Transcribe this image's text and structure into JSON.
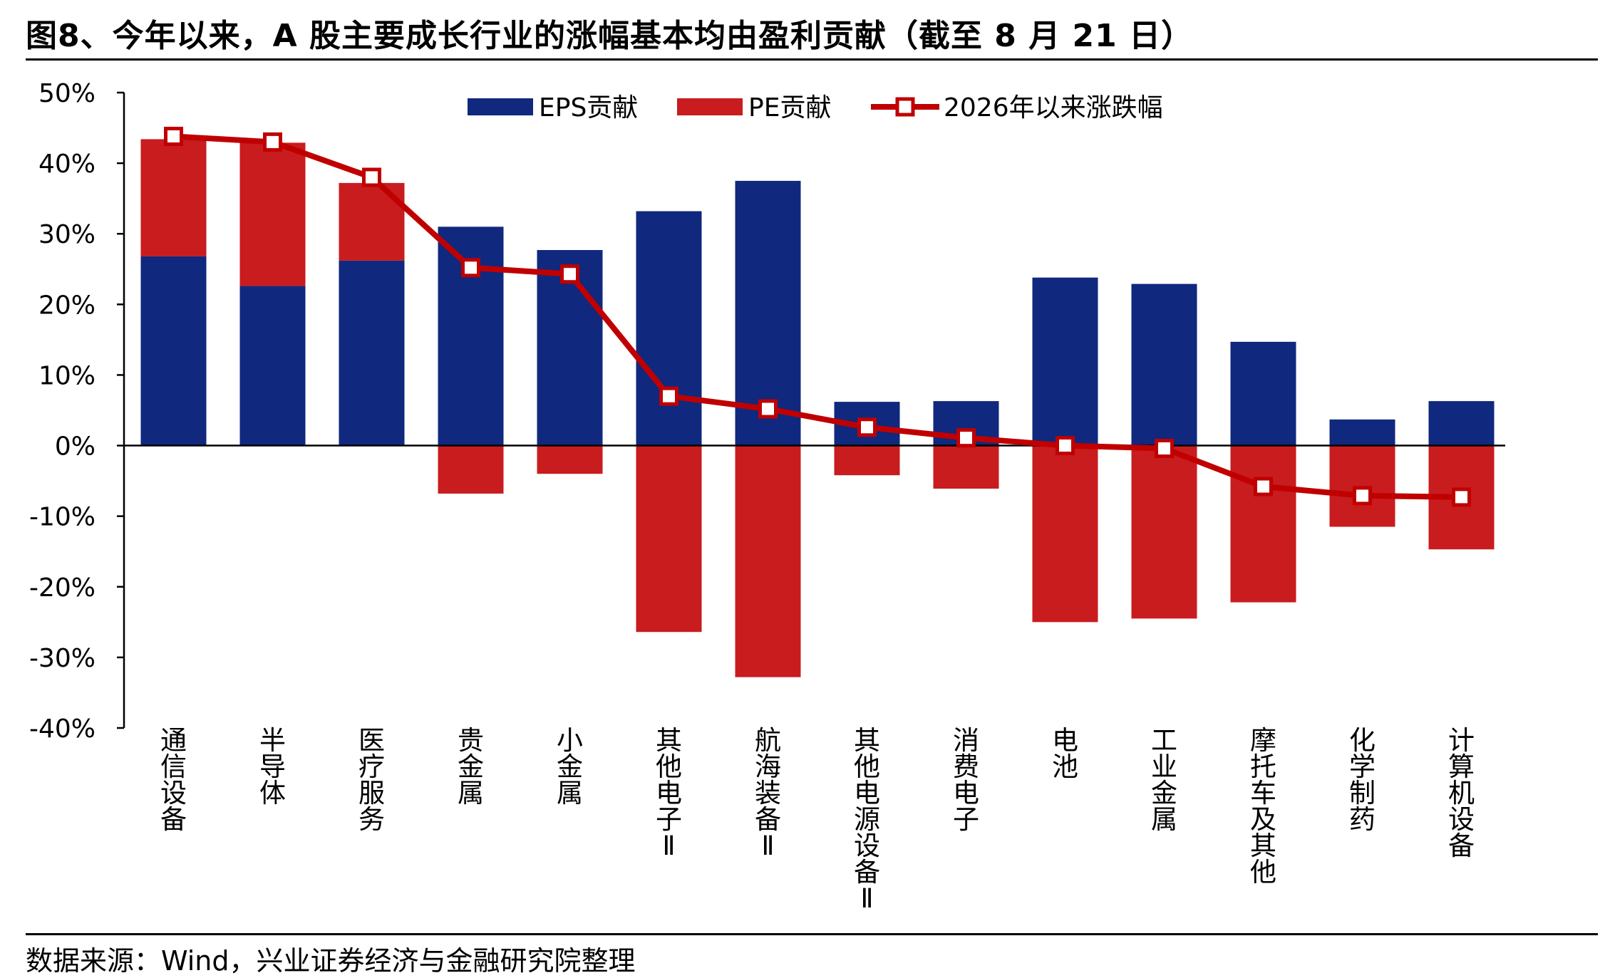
{
  "title": "图8、今年以来，A 股主要成长行业的涨幅基本均由盈利贡献（截至 8 月 21 日）",
  "source": "数据来源：Wind，兴业证券经济与金融研究院整理",
  "colors": {
    "eps": "#10287e",
    "pe": "#c81c1e",
    "line": "#c00000"
  },
  "chart_data": {
    "type": "bar",
    "categories": [
      "通信设备",
      "半导体",
      "医疗服务",
      "贵金属",
      "小金属",
      "其他电子Ⅱ",
      "航海装备Ⅱ",
      "其他电源设备Ⅱ",
      "消费电子",
      "电池",
      "工业金属",
      "摩托车及其他",
      "化学制药",
      "计算机设备"
    ],
    "series": [
      {
        "name": "EPS贡献",
        "type": "bar",
        "stacked": true,
        "values": [
          26.8,
          22.6,
          26.2,
          31.0,
          27.7,
          33.2,
          37.5,
          6.2,
          6.3,
          23.8,
          22.9,
          14.7,
          3.7,
          6.3
        ]
      },
      {
        "name": "PE贡献",
        "type": "bar",
        "stacked": true,
        "values": [
          16.6,
          20.3,
          11.0,
          -6.8,
          -4.0,
          -26.4,
          -32.8,
          -4.2,
          -6.1,
          -25.0,
          -24.5,
          -22.2,
          -11.5,
          -14.7
        ]
      },
      {
        "name": "2026年以来涨跌幅",
        "type": "line",
        "values": [
          43.8,
          43.0,
          38.0,
          25.2,
          24.3,
          7.0,
          5.2,
          2.6,
          1.1,
          0.0,
          -0.4,
          -5.8,
          -7.1,
          -7.3
        ]
      }
    ],
    "yticks": [
      "50%",
      "40%",
      "30%",
      "20%",
      "10%",
      "0%",
      "-10%",
      "-20%",
      "-30%",
      "-40%"
    ],
    "ylim": [
      -40,
      50
    ],
    "legend": "top-center",
    "grid": false
  }
}
